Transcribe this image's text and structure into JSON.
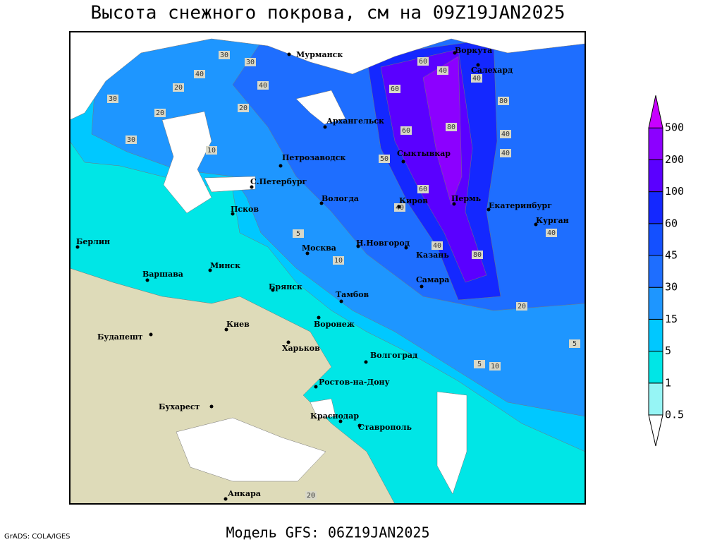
{
  "title": "Высота снежного покрова, см на 09Z19JAN2025",
  "footer": {
    "model": "Модель GFS: 06Z19JAN2025",
    "credit": "GrADS: COLA/IGES"
  },
  "legend": {
    "levels": [
      0.5,
      1,
      5,
      15,
      30,
      45,
      60,
      100,
      200,
      500
    ],
    "colors": [
      "#ffffff",
      "#96f5f5",
      "#00e6e6",
      "#00c8ff",
      "#1e96ff",
      "#1e6eff",
      "#1450ff",
      "#1428ff",
      "#5a00ff",
      "#8c00ff",
      "#c800ff"
    ]
  },
  "cities": [
    "Мурманск",
    "Воркута",
    "Салехард",
    "Архангельск",
    "Петрозаводск",
    "Сыктывкар",
    "С.Петербург",
    "Вологда",
    "Киров",
    "Пермь",
    "Екатеринбург",
    "Курган",
    "Псков",
    "Н.Новгород",
    "Москва",
    "Казань",
    "Берлин",
    "Минск",
    "Варшава",
    "Самара",
    "Брянск",
    "Тамбов",
    "Киев",
    "Воронеж",
    "Будапешт",
    "Харьков",
    "Волгоград",
    "Ростов-на-Дону",
    "Бухарест",
    "Краснодар",
    "Ставрополь",
    "Анкара"
  ],
  "contour_labels": [
    30,
    40,
    20,
    30,
    40,
    30,
    20,
    20,
    10,
    30,
    60,
    40,
    60,
    40,
    80,
    60,
    80,
    40,
    40,
    50,
    60,
    40,
    80,
    40,
    20,
    5,
    10,
    5,
    10,
    5,
    20,
    40
  ]
}
